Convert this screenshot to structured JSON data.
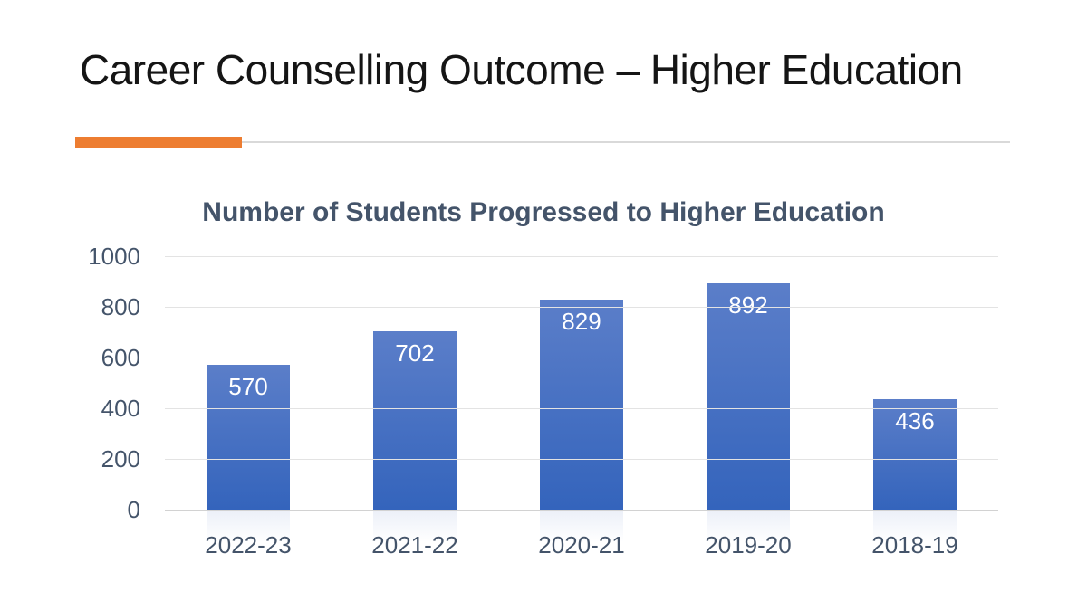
{
  "slide": {
    "title": "Career Counselling Outcome – Higher Education",
    "accent_color": "#ED7D31",
    "divider_line_color": "#D9D9D9"
  },
  "chart_data": {
    "type": "bar",
    "title": "Number of Students Progressed to Higher Education",
    "categories": [
      "2022-23",
      "2021-22",
      "2020-21",
      "2019-20",
      "2018-19"
    ],
    "values": [
      570,
      702,
      829,
      892,
      436
    ],
    "xlabel": "",
    "ylabel": "",
    "ylim": [
      0,
      1000
    ],
    "yticks": [
      0,
      200,
      400,
      600,
      800,
      1000
    ],
    "grid": true,
    "legend": "none",
    "bar_color_top": "#5B7EC9",
    "bar_color_bottom": "#3464BC",
    "data_label_color": "#FFFFFF",
    "axis_text_color": "#44546A",
    "title_color": "#44546A"
  }
}
